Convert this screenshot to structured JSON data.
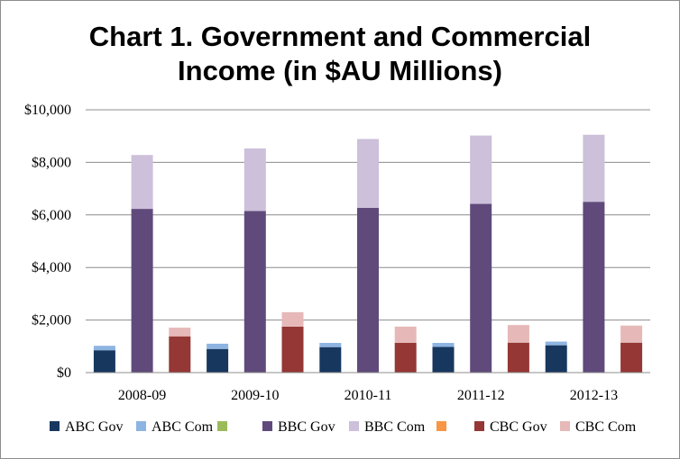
{
  "chart_data": {
    "type": "bar",
    "title_lines": [
      "Chart 1. Government and Commercial",
      "Income (in $AU Millions)"
    ],
    "xlabel": "",
    "ylabel": "",
    "categories": [
      "2008-09",
      "2009-10",
      "2010-11",
      "2011-12",
      "2012-13"
    ],
    "ylim": [
      0,
      10000
    ],
    "yticks": [
      0,
      2000,
      4000,
      6000,
      8000,
      10000
    ],
    "ytick_labels": [
      "$0",
      "$2,000",
      "$4,000",
      "$6,000",
      "$8,000",
      "$10,000"
    ],
    "grid": true,
    "legend_position": "bottom",
    "stack_groups": [
      "ABC",
      "BBC",
      "CBC"
    ],
    "series": [
      {
        "name": "ABC Gov",
        "stack": "ABC",
        "color": "#17375e",
        "values": [
          850,
          900,
          970,
          980,
          1040
        ]
      },
      {
        "name": "ABC Com",
        "stack": "ABC",
        "color": "#8db4e2",
        "values": [
          170,
          200,
          160,
          150,
          140
        ]
      },
      {
        "name": "BBC Gov",
        "stack": "BBC",
        "color": "#604a7b",
        "values": [
          6230,
          6150,
          6270,
          6420,
          6500
        ]
      },
      {
        "name": "BBC Com",
        "stack": "BBC",
        "color": "#ccc0da",
        "values": [
          2050,
          2380,
          2620,
          2600,
          2550
        ]
      },
      {
        "name": "CBC Gov",
        "stack": "CBC",
        "color": "#953735",
        "values": [
          1380,
          1750,
          1130,
          1140,
          1140
        ]
      },
      {
        "name": "CBC Com",
        "stack": "CBC",
        "color": "#e6b9b8",
        "values": [
          330,
          550,
          620,
          670,
          650
        ]
      }
    ],
    "legend_entries": [
      {
        "name": "ABC Gov",
        "color": "#17375e"
      },
      {
        "name": "ABC Com",
        "color": "#8db4e2"
      },
      {
        "name": "",
        "color": "#9bbb59"
      },
      {
        "name": "BBC Gov",
        "color": "#604a7b"
      },
      {
        "name": "BBC Com",
        "color": "#ccc0da"
      },
      {
        "name": "",
        "color": "#f79646"
      },
      {
        "name": "CBC Gov",
        "color": "#953735"
      },
      {
        "name": "CBC Com",
        "color": "#e6b9b8"
      }
    ]
  }
}
